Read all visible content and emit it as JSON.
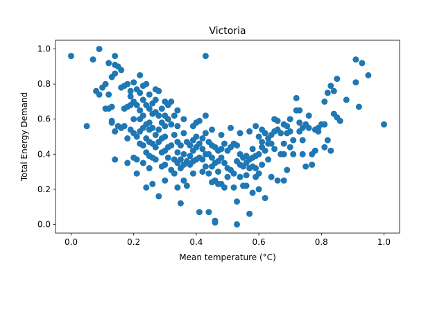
{
  "chart_data": {
    "type": "scatter",
    "title": "Victoria",
    "xlabel": "Mean temperature (°C)",
    "ylabel": "Total Energy Demand",
    "xlim": [
      -0.05,
      1.05
    ],
    "ylim": [
      -0.05,
      1.05
    ],
    "xticks": [
      0.0,
      0.2,
      0.4,
      0.6,
      0.8,
      1.0
    ],
    "yticks": [
      0.0,
      0.2,
      0.4,
      0.6,
      0.8,
      1.0
    ],
    "grid": false,
    "point_color": "#1f77b4",
    "points": [
      [
        0.0,
        0.96
      ],
      [
        0.05,
        0.56
      ],
      [
        0.07,
        0.94
      ],
      [
        0.08,
        0.76
      ],
      [
        0.09,
        0.74
      ],
      [
        0.09,
        1.0
      ],
      [
        0.1,
        0.78
      ],
      [
        0.11,
        0.8
      ],
      [
        0.11,
        0.66
      ],
      [
        0.12,
        0.92
      ],
      [
        0.12,
        0.74
      ],
      [
        0.12,
        0.66
      ],
      [
        0.13,
        0.67
      ],
      [
        0.13,
        0.84
      ],
      [
        0.13,
        0.59
      ],
      [
        0.13,
        0.58
      ],
      [
        0.14,
        0.96
      ],
      [
        0.14,
        0.91
      ],
      [
        0.14,
        0.86
      ],
      [
        0.14,
        0.53
      ],
      [
        0.14,
        0.37
      ],
      [
        0.15,
        0.9
      ],
      [
        0.15,
        0.56
      ],
      [
        0.16,
        0.88
      ],
      [
        0.16,
        0.78
      ],
      [
        0.16,
        0.55
      ],
      [
        0.17,
        0.79
      ],
      [
        0.17,
        0.66
      ],
      [
        0.17,
        0.56
      ],
      [
        0.18,
        0.8
      ],
      [
        0.18,
        0.67
      ],
      [
        0.18,
        0.49
      ],
      [
        0.18,
        0.35
      ],
      [
        0.19,
        0.76
      ],
      [
        0.19,
        0.73
      ],
      [
        0.19,
        0.68
      ],
      [
        0.19,
        0.54
      ],
      [
        0.2,
        0.81
      ],
      [
        0.2,
        0.7
      ],
      [
        0.2,
        0.6
      ],
      [
        0.2,
        0.52
      ],
      [
        0.2,
        0.38
      ],
      [
        0.21,
        0.77
      ],
      [
        0.21,
        0.68
      ],
      [
        0.21,
        0.5
      ],
      [
        0.21,
        0.29
      ],
      [
        0.21,
        0.37
      ],
      [
        0.22,
        0.85
      ],
      [
        0.22,
        0.75
      ],
      [
        0.22,
        0.65
      ],
      [
        0.22,
        0.6
      ],
      [
        0.22,
        0.53
      ],
      [
        0.22,
        0.46
      ],
      [
        0.23,
        0.79
      ],
      [
        0.23,
        0.71
      ],
      [
        0.23,
        0.62
      ],
      [
        0.23,
        0.55
      ],
      [
        0.23,
        0.45
      ],
      [
        0.23,
        0.35
      ],
      [
        0.24,
        0.8
      ],
      [
        0.24,
        0.68
      ],
      [
        0.24,
        0.57
      ],
      [
        0.24,
        0.49
      ],
      [
        0.24,
        0.41
      ],
      [
        0.24,
        0.21
      ],
      [
        0.25,
        0.74
      ],
      [
        0.25,
        0.66
      ],
      [
        0.25,
        0.58
      ],
      [
        0.25,
        0.54
      ],
      [
        0.25,
        0.47
      ],
      [
        0.25,
        0.39
      ],
      [
        0.25,
        0.32
      ],
      [
        0.26,
        0.69
      ],
      [
        0.26,
        0.63
      ],
      [
        0.26,
        0.55
      ],
      [
        0.26,
        0.46
      ],
      [
        0.26,
        0.38
      ],
      [
        0.26,
        0.23
      ],
      [
        0.27,
        0.77
      ],
      [
        0.27,
        0.71
      ],
      [
        0.27,
        0.64
      ],
      [
        0.27,
        0.51
      ],
      [
        0.27,
        0.44
      ],
      [
        0.27,
        0.37
      ],
      [
        0.28,
        0.76
      ],
      [
        0.28,
        0.62
      ],
      [
        0.28,
        0.54
      ],
      [
        0.28,
        0.47
      ],
      [
        0.28,
        0.16
      ],
      [
        0.29,
        0.66
      ],
      [
        0.29,
        0.58
      ],
      [
        0.29,
        0.49
      ],
      [
        0.29,
        0.41
      ],
      [
        0.29,
        0.33
      ],
      [
        0.3,
        0.7
      ],
      [
        0.3,
        0.62
      ],
      [
        0.3,
        0.56
      ],
      [
        0.3,
        0.5
      ],
      [
        0.3,
        0.42
      ],
      [
        0.3,
        0.34
      ],
      [
        0.3,
        0.25
      ],
      [
        0.31,
        0.68
      ],
      [
        0.31,
        0.6
      ],
      [
        0.31,
        0.44
      ],
      [
        0.31,
        0.38
      ],
      [
        0.32,
        0.7
      ],
      [
        0.32,
        0.57
      ],
      [
        0.32,
        0.45
      ],
      [
        0.32,
        0.31
      ],
      [
        0.33,
        0.62
      ],
      [
        0.33,
        0.51
      ],
      [
        0.33,
        0.37
      ],
      [
        0.33,
        0.29
      ],
      [
        0.34,
        0.65
      ],
      [
        0.34,
        0.56
      ],
      [
        0.34,
        0.47
      ],
      [
        0.34,
        0.41
      ],
      [
        0.34,
        0.35
      ],
      [
        0.34,
        0.21
      ],
      [
        0.35,
        0.45
      ],
      [
        0.35,
        0.37
      ],
      [
        0.35,
        0.12
      ],
      [
        0.35,
        0.32
      ],
      [
        0.36,
        0.6
      ],
      [
        0.36,
        0.52
      ],
      [
        0.36,
        0.4
      ],
      [
        0.36,
        0.34
      ],
      [
        0.36,
        0.25
      ],
      [
        0.37,
        0.47
      ],
      [
        0.37,
        0.36
      ],
      [
        0.37,
        0.22
      ],
      [
        0.38,
        0.45
      ],
      [
        0.38,
        0.39
      ],
      [
        0.38,
        0.34
      ],
      [
        0.39,
        0.56
      ],
      [
        0.39,
        0.48
      ],
      [
        0.39,
        0.42
      ],
      [
        0.39,
        0.36
      ],
      [
        0.39,
        0.29
      ],
      [
        0.4,
        0.58
      ],
      [
        0.4,
        0.5
      ],
      [
        0.4,
        0.44
      ],
      [
        0.4,
        0.37
      ],
      [
        0.41,
        0.59
      ],
      [
        0.41,
        0.46
      ],
      [
        0.41,
        0.38
      ],
      [
        0.41,
        0.07
      ],
      [
        0.42,
        0.49
      ],
      [
        0.42,
        0.43
      ],
      [
        0.42,
        0.37
      ],
      [
        0.42,
        0.3
      ],
      [
        0.43,
        0.62
      ],
      [
        0.43,
        0.96
      ],
      [
        0.43,
        0.52
      ],
      [
        0.43,
        0.4
      ],
      [
        0.43,
        0.33
      ],
      [
        0.44,
        0.47
      ],
      [
        0.44,
        0.4
      ],
      [
        0.44,
        0.29
      ],
      [
        0.44,
        0.07
      ],
      [
        0.45,
        0.54
      ],
      [
        0.45,
        0.45
      ],
      [
        0.45,
        0.38
      ],
      [
        0.45,
        0.33
      ],
      [
        0.45,
        0.24
      ],
      [
        0.46,
        0.44
      ],
      [
        0.46,
        0.35
      ],
      [
        0.46,
        0.25
      ],
      [
        0.46,
        0.02
      ],
      [
        0.46,
        0.01
      ],
      [
        0.47,
        0.42
      ],
      [
        0.47,
        0.36
      ],
      [
        0.47,
        0.3
      ],
      [
        0.47,
        0.23
      ],
      [
        0.48,
        0.51
      ],
      [
        0.48,
        0.43
      ],
      [
        0.48,
        0.38
      ],
      [
        0.48,
        0.23
      ],
      [
        0.49,
        0.46
      ],
      [
        0.49,
        0.35
      ],
      [
        0.49,
        0.21
      ],
      [
        0.5,
        0.42
      ],
      [
        0.5,
        0.32
      ],
      [
        0.5,
        0.27
      ],
      [
        0.51,
        0.55
      ],
      [
        0.51,
        0.44
      ],
      [
        0.51,
        0.31
      ],
      [
        0.52,
        0.46
      ],
      [
        0.52,
        0.29
      ],
      [
        0.52,
        0.21
      ],
      [
        0.53,
        0.45
      ],
      [
        0.53,
        0.36
      ],
      [
        0.53,
        0.13
      ],
      [
        0.53,
        0.0
      ],
      [
        0.54,
        0.52
      ],
      [
        0.54,
        0.4
      ],
      [
        0.54,
        0.34
      ],
      [
        0.54,
        0.27
      ],
      [
        0.55,
        0.38
      ],
      [
        0.55,
        0.33
      ],
      [
        0.55,
        0.22
      ],
      [
        0.56,
        0.39
      ],
      [
        0.56,
        0.35
      ],
      [
        0.56,
        0.28
      ],
      [
        0.56,
        0.22
      ],
      [
        0.57,
        0.53
      ],
      [
        0.57,
        0.37
      ],
      [
        0.57,
        0.32
      ],
      [
        0.57,
        0.06
      ],
      [
        0.58,
        0.43
      ],
      [
        0.58,
        0.38
      ],
      [
        0.58,
        0.33
      ],
      [
        0.58,
        0.18
      ],
      [
        0.59,
        0.56
      ],
      [
        0.59,
        0.39
      ],
      [
        0.59,
        0.32
      ],
      [
        0.59,
        0.27
      ],
      [
        0.6,
        0.5
      ],
      [
        0.6,
        0.4
      ],
      [
        0.6,
        0.29
      ],
      [
        0.6,
        0.2
      ],
      [
        0.61,
        0.54
      ],
      [
        0.61,
        0.47
      ],
      [
        0.61,
        0.44
      ],
      [
        0.61,
        0.34
      ],
      [
        0.62,
        0.52
      ],
      [
        0.62,
        0.42
      ],
      [
        0.62,
        0.15
      ],
      [
        0.63,
        0.49
      ],
      [
        0.63,
        0.46
      ],
      [
        0.63,
        0.37
      ],
      [
        0.64,
        0.51
      ],
      [
        0.64,
        0.46
      ],
      [
        0.64,
        0.27
      ],
      [
        0.65,
        0.6
      ],
      [
        0.65,
        0.53
      ],
      [
        0.65,
        0.43
      ],
      [
        0.66,
        0.59
      ],
      [
        0.66,
        0.54
      ],
      [
        0.66,
        0.25
      ],
      [
        0.67,
        0.52
      ],
      [
        0.67,
        0.4
      ],
      [
        0.68,
        0.57
      ],
      [
        0.68,
        0.46
      ],
      [
        0.68,
        0.4
      ],
      [
        0.68,
        0.25
      ],
      [
        0.69,
        0.56
      ],
      [
        0.69,
        0.52
      ],
      [
        0.69,
        0.31
      ],
      [
        0.7,
        0.6
      ],
      [
        0.7,
        0.53
      ],
      [
        0.7,
        0.44
      ],
      [
        0.71,
        0.48
      ],
      [
        0.71,
        0.4
      ],
      [
        0.72,
        0.72
      ],
      [
        0.72,
        0.65
      ],
      [
        0.73,
        0.65
      ],
      [
        0.73,
        0.58
      ],
      [
        0.73,
        0.53
      ],
      [
        0.74,
        0.55
      ],
      [
        0.74,
        0.48
      ],
      [
        0.74,
        0.4
      ],
      [
        0.75,
        0.57
      ],
      [
        0.75,
        0.33
      ],
      [
        0.76,
        0.62
      ],
      [
        0.76,
        0.55
      ],
      [
        0.77,
        0.34
      ],
      [
        0.77,
        0.4
      ],
      [
        0.78,
        0.54
      ],
      [
        0.78,
        0.42
      ],
      [
        0.79,
        0.55
      ],
      [
        0.79,
        0.53
      ],
      [
        0.8,
        0.57
      ],
      [
        0.81,
        0.44
      ],
      [
        0.81,
        0.7
      ],
      [
        0.81,
        0.57
      ],
      [
        0.82,
        0.75
      ],
      [
        0.82,
        0.48
      ],
      [
        0.83,
        0.79
      ],
      [
        0.83,
        0.42
      ],
      [
        0.84,
        0.76
      ],
      [
        0.84,
        0.63
      ],
      [
        0.85,
        0.83
      ],
      [
        0.85,
        0.61
      ],
      [
        0.86,
        0.59
      ],
      [
        0.88,
        0.71
      ],
      [
        0.91,
        0.81
      ],
      [
        0.91,
        0.94
      ],
      [
        0.92,
        0.67
      ],
      [
        0.93,
        0.92
      ],
      [
        0.95,
        0.85
      ],
      [
        1.0,
        0.57
      ]
    ]
  }
}
